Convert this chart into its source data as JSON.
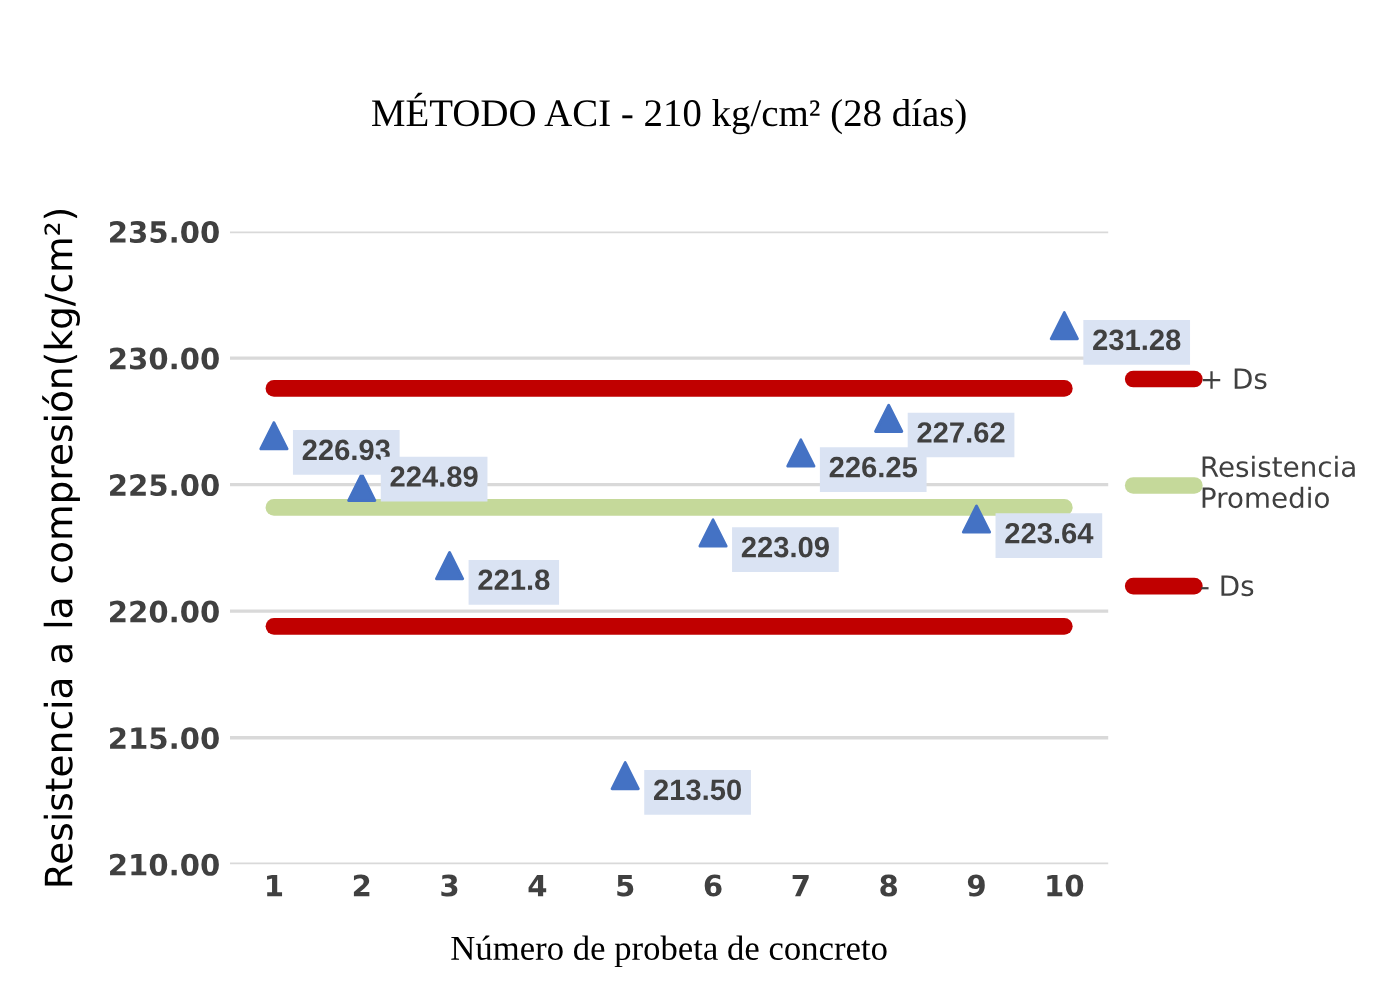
{
  "chart_data": {
    "type": "scatter",
    "title": "MÉTODO ACI - 210 kg/cm² (28 días)",
    "xlabel": "Número de probeta de concreto",
    "ylabel": "Resistencia a la compresión(kg/cm²)",
    "categories": [
      "1",
      "2",
      "3",
      "4",
      "5",
      "6",
      "7",
      "8",
      "9",
      "10"
    ],
    "series": [
      {
        "type": "line",
        "name": "+ Ds",
        "color": "#c00000",
        "values": [
          228.8,
          228.8,
          228.8,
          228.8,
          228.8,
          228.8,
          228.8,
          228.8,
          228.8,
          228.8
        ]
      },
      {
        "type": "line",
        "name": "Resistencia Promedio",
        "color": "#c5d99a",
        "values": [
          224.1,
          224.1,
          224.1,
          224.1,
          224.1,
          224.1,
          224.1,
          224.1,
          224.1,
          224.1
        ]
      },
      {
        "type": "line",
        "name": "- Ds",
        "color": "#c00000",
        "values": [
          219.4,
          219.4,
          219.4,
          219.4,
          219.4,
          219.4,
          219.4,
          219.4,
          219.4,
          219.4
        ]
      },
      {
        "color": "#4472c4",
        "marker": "triangle",
        "values": [
          226.93,
          224.89,
          221.8,
          null,
          213.5,
          223.09,
          226.25,
          227.62,
          223.64,
          231.28
        ],
        "value_labels": [
          "226.93",
          "224.89",
          "221.8",
          null,
          "213.50",
          "223.09",
          "226.25",
          "227.62",
          "223.64",
          "231.28"
        ]
      }
    ],
    "ylim": [
      210,
      235
    ],
    "yticks": [
      {
        "value": 210,
        "label": "210.00"
      },
      {
        "value": 215,
        "label": "215.00"
      },
      {
        "value": 220,
        "label": "220.00"
      },
      {
        "value": 225,
        "label": "225.00"
      },
      {
        "value": 230,
        "label": "230.00"
      },
      {
        "value": 235,
        "label": "235.00"
      }
    ],
    "grid": "y",
    "legend": "right"
  }
}
